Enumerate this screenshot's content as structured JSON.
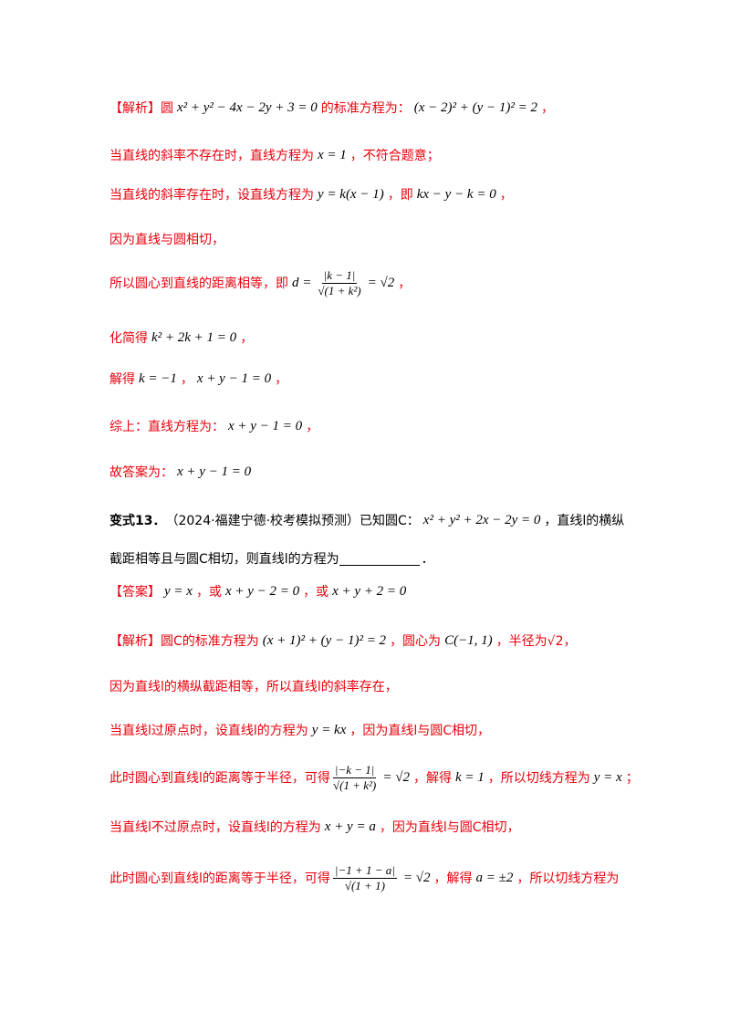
{
  "lines": [
    [
      {
        "c": "r",
        "t": "【解析】圆"
      },
      {
        "c": "m",
        "t": "x² + y² − 4x − 2y + 3 = 0"
      },
      {
        "c": "r",
        "t": "的标准方程为："
      },
      {
        "c": "m",
        "t": "(x − 2)² + (y − 1)² = 2"
      },
      {
        "c": "r",
        "t": "，"
      }
    ],
    [
      {
        "c": "r",
        "t": "当直线的斜率不存在时，直线方程为"
      },
      {
        "c": "m",
        "t": "x = 1"
      },
      {
        "c": "r",
        "t": "，不符合题意；"
      }
    ],
    [
      {
        "c": "r",
        "t": "当直线的斜率存在时，设直线方程为"
      },
      {
        "c": "m",
        "t": "y = k(x − 1)"
      },
      {
        "c": "r",
        "t": "，即"
      },
      {
        "c": "m",
        "t": "kx − y − k = 0"
      },
      {
        "c": "r",
        "t": "，"
      }
    ],
    [
      {
        "c": "r",
        "t": "因为直线与圆相切，"
      }
    ],
    [
      {
        "c": "r",
        "t": "所以圆心到直线的距离相等，即"
      },
      {
        "c": "m",
        "t": "d ="
      },
      {
        "c": "f",
        "num": "|k − 1|",
        "den": "√(1 + k²)"
      },
      {
        "c": "m",
        "t": "= √2"
      },
      {
        "c": "r",
        "t": "，"
      }
    ],
    [
      {
        "c": "r",
        "t": "化简得"
      },
      {
        "c": "m",
        "t": "k² + 2k + 1 = 0"
      },
      {
        "c": "r",
        "t": "，"
      }
    ],
    [
      {
        "c": "r",
        "t": "解得"
      },
      {
        "c": "m",
        "t": "k = −1"
      },
      {
        "c": "r",
        "t": "，"
      },
      {
        "c": "m",
        "t": "x + y − 1 = 0"
      },
      {
        "c": "r",
        "t": "，"
      }
    ],
    [
      {
        "c": "r",
        "t": "综上：直线方程为："
      },
      {
        "c": "m",
        "t": "x + y − 1 = 0"
      },
      {
        "c": "r",
        "t": "，"
      }
    ],
    [
      {
        "c": "r",
        "t": "故答案为："
      },
      {
        "c": "m",
        "t": "x + y − 1 = 0"
      }
    ],
    [
      {
        "c": "b",
        "t": "变式13．"
      },
      {
        "c": "k",
        "t": "（2024·福建宁德·校考模拟预测）已知圆C："
      },
      {
        "c": "m",
        "t": "x² + y² + 2x − 2y = 0"
      },
      {
        "c": "k",
        "t": "，直线l的横纵"
      }
    ],
    [
      {
        "c": "k",
        "t": "截距相等且与圆C相切，则直线l的方程为"
      },
      {
        "c": "k",
        "t": "．",
        "blank": true
      }
    ],
    [
      {
        "c": "r",
        "t": "【答案】"
      },
      {
        "c": "m",
        "t": "y = x"
      },
      {
        "c": "r",
        "t": "，或"
      },
      {
        "c": "m",
        "t": "x + y − 2 = 0"
      },
      {
        "c": "r",
        "t": "，或"
      },
      {
        "c": "m",
        "t": "x + y + 2 = 0"
      }
    ],
    [
      {
        "c": "r",
        "t": "【解析】圆C的标准方程为"
      },
      {
        "c": "m",
        "t": "(x + 1)² + (y − 1)² = 2"
      },
      {
        "c": "r",
        "t": "，圆心为"
      },
      {
        "c": "m",
        "t": "C(−1, 1)"
      },
      {
        "c": "r",
        "t": "，半径为√2，"
      }
    ],
    [
      {
        "c": "r",
        "t": "因为直线l的横纵截距相等，所以直线l的斜率存在，"
      }
    ],
    [
      {
        "c": "r",
        "t": "当直线l过原点时，设直线l的方程为"
      },
      {
        "c": "m",
        "t": "y = kx"
      },
      {
        "c": "r",
        "t": "，因为直线l与圆C相切，"
      }
    ],
    [
      {
        "c": "r",
        "t": "此时圆心到直线l的距离等于半径，可得"
      },
      {
        "c": "f",
        "num": "|−k − 1|",
        "den": "√(1 + k²)"
      },
      {
        "c": "m",
        "t": "= √2"
      },
      {
        "c": "r",
        "t": "，解得"
      },
      {
        "c": "m",
        "t": "k = 1"
      },
      {
        "c": "r",
        "t": "，所以切线方程为"
      },
      {
        "c": "m",
        "t": "y = x"
      },
      {
        "c": "r",
        "t": "；"
      }
    ],
    [
      {
        "c": "r",
        "t": "当直线l不过原点时，设直线l的方程为"
      },
      {
        "c": "m",
        "t": "x + y = a"
      },
      {
        "c": "r",
        "t": "，因为直线l与圆C相切，"
      }
    ],
    [
      {
        "c": "r",
        "t": "此时圆心到直线l的距离等于半径，可得"
      },
      {
        "c": "f",
        "num": "|−1 + 1 − a|",
        "den": "√(1 + 1)"
      },
      {
        "c": "m",
        "t": "= √2"
      },
      {
        "c": "r",
        "t": "，解得"
      },
      {
        "c": "m",
        "t": "a = ±2"
      },
      {
        "c": "r",
        "t": "，所以切线方程为"
      }
    ]
  ]
}
